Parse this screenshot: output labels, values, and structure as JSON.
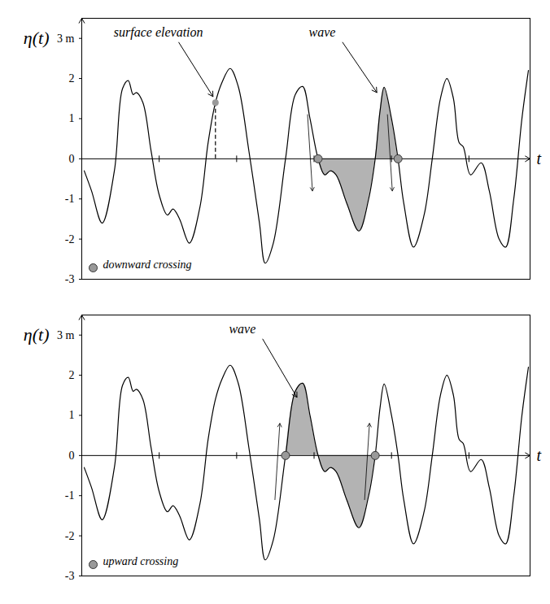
{
  "chart_data": [
    {
      "type": "line",
      "y_label": "η(t)",
      "x_label": "t",
      "x": [
        0.6,
        2.4,
        5,
        8,
        10,
        11.4,
        12.6,
        13.4,
        15,
        17,
        19,
        21,
        22.4,
        24,
        26.4,
        29,
        31,
        32.8,
        34.4,
        36.4,
        38.4,
        41,
        43.6,
        45,
        47,
        50,
        52.4,
        54.2,
        56,
        58,
        59.6,
        61,
        62.4,
        65,
        68,
        70.4,
        72,
        73.2,
        74.2,
        76,
        77.6,
        79,
        81.4,
        84,
        86,
        88,
        89.6,
        91.2,
        92.6,
        93.6,
        95.4,
        98,
        100,
        102.4,
        104,
        106,
        108,
        109.6
      ],
      "values": [
        -0.3,
        -0.8,
        -1.6,
        -0.3,
        1.75,
        1.95,
        1.6,
        1.65,
        1.4,
        0.2,
        -0.9,
        -1.4,
        -1.25,
        -1.5,
        -2.1,
        -1.2,
        0.4,
        1.4,
        1.9,
        2.25,
        1.8,
        0.2,
        -1.6,
        -2.6,
        -2.1,
        0,
        1.6,
        1.8,
        1.0,
        0,
        -0.4,
        -0.3,
        -0.4,
        -1.1,
        -1.8,
        -1.0,
        0,
        1.2,
        1.78,
        1.0,
        0,
        -1.1,
        -2.2,
        -1.4,
        0,
        1.5,
        2.0,
        1.5,
        0.4,
        0.3,
        -0.4,
        -0.1,
        -0.8,
        -2.0,
        -2.2,
        -1.0,
        1.0,
        2.2
      ],
      "color": "#000000",
      "xlim": [
        0,
        110
      ],
      "ylim": [
        -3,
        3.5
      ],
      "xticks": [
        19,
        38,
        57,
        76,
        95
      ],
      "yticks": [
        -3,
        -2,
        -1,
        0,
        1,
        2,
        {
          "value": 3,
          "label": "3 m"
        }
      ],
      "tick_labels": "y",
      "shaded": {
        "start": 58,
        "end": 77.6,
        "color": "#b3b3b3"
      },
      "crossings": {
        "name": "downward crossing",
        "x": [
          58,
          77.6
        ],
        "values": [
          0,
          0
        ],
        "color": "#999999",
        "marker": "circle"
      },
      "legend": "bottom-left",
      "annotations": [
        {
          "text": "surface elevation",
          "x": 32.8,
          "y": 1.4,
          "marker": "circle",
          "line_style": "dashed"
        },
        {
          "text": "wave",
          "x": 73,
          "y": 1.5
        }
      ]
    },
    {
      "type": "line",
      "y_label": "η(t)",
      "x_label": "t",
      "x": [
        0.6,
        2.4,
        5,
        8,
        10,
        11.4,
        12.6,
        13.4,
        15,
        17,
        19,
        21,
        22.4,
        24,
        26.4,
        29,
        31,
        32.8,
        34.4,
        36.4,
        38.4,
        41,
        43.6,
        45,
        47,
        50,
        52.4,
        54.2,
        56,
        58,
        59.6,
        61,
        62.4,
        65,
        68,
        70.4,
        72,
        73.2,
        74.2,
        76,
        77.6,
        79,
        81.4,
        84,
        86,
        88,
        89.6,
        91.2,
        92.6,
        93.6,
        95.4,
        98,
        100,
        102.4,
        104,
        106,
        108,
        109.6
      ],
      "values": [
        -0.3,
        -0.8,
        -1.6,
        -0.3,
        1.75,
        1.95,
        1.6,
        1.65,
        1.4,
        0.2,
        -0.9,
        -1.4,
        -1.25,
        -1.5,
        -2.1,
        -1.2,
        0.4,
        1.4,
        1.9,
        2.25,
        1.8,
        0.2,
        -1.6,
        -2.6,
        -2.1,
        0,
        1.6,
        1.8,
        1.0,
        0,
        -0.4,
        -0.3,
        -0.4,
        -1.1,
        -1.8,
        -1.0,
        0,
        1.2,
        1.78,
        1.0,
        0,
        -1.1,
        -2.2,
        -1.4,
        0,
        1.5,
        2.0,
        1.5,
        0.4,
        0.3,
        -0.4,
        -0.1,
        -0.8,
        -2.0,
        -2.2,
        -1.0,
        1.0,
        2.2
      ],
      "color": "#000000",
      "xlim": [
        0,
        110
      ],
      "ylim": [
        -3,
        3.5
      ],
      "xticks": [
        19,
        38,
        57,
        76,
        95
      ],
      "yticks": [
        -3,
        -2,
        -1,
        0,
        1,
        2,
        {
          "value": 3,
          "label": "3 m"
        }
      ],
      "tick_labels": "y",
      "shaded": {
        "start": 50,
        "end": 72,
        "color": "#b3b3b3"
      },
      "crossings": {
        "name": "upward crossing",
        "x": [
          50,
          72
        ],
        "values": [
          0,
          0
        ],
        "color": "#999999",
        "marker": "circle"
      },
      "legend": "bottom-left",
      "annotations": [
        {
          "text": "wave",
          "x": 53.4,
          "y": 1.3
        }
      ]
    }
  ]
}
